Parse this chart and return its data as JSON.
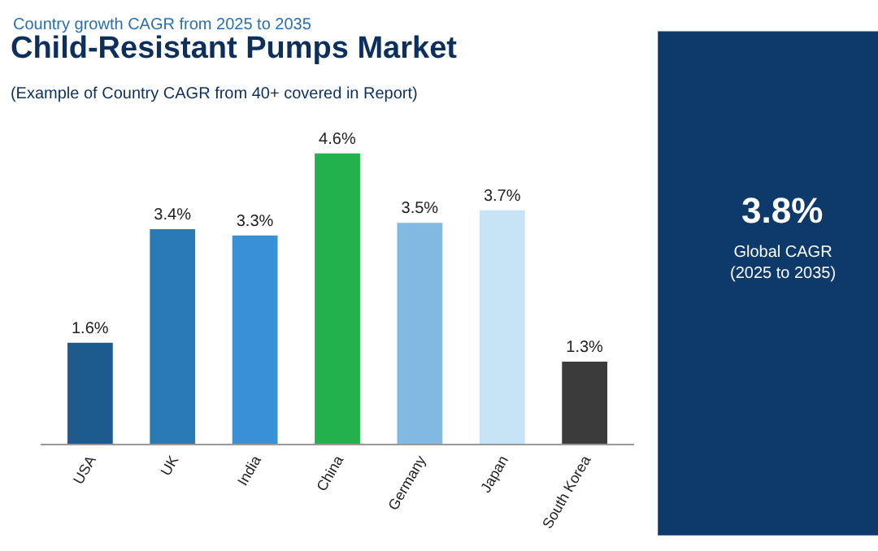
{
  "chart_data": {
    "type": "bar",
    "title": "Child-Resistant Pumps Market",
    "subtitle": "(Example of Country CAGR from 40+ covered in Report)",
    "categories": [
      "USA",
      "UK",
      "India",
      "China",
      "Germany",
      "Japan",
      "South Korea"
    ],
    "values": [
      1.6,
      3.4,
      3.3,
      4.6,
      3.5,
      3.7,
      1.3
    ],
    "colors": [
      "#1d5a8e",
      "#2a7ab8",
      "#3a90d4",
      "#22b14c",
      "#80b9e2",
      "#c7e4f6",
      "#3b3b3b"
    ],
    "value_labels": [
      "1.6%",
      "3.4%",
      "3.3%",
      "4.6%",
      "3.5%",
      "3.7%",
      "1.3%"
    ],
    "annotations": [
      "Country growth CAGR from 2025 to 2035",
      "3.8%",
      "Global CAGR\n(2025 to 2035)"
    ],
    "legend": false
  }
}
